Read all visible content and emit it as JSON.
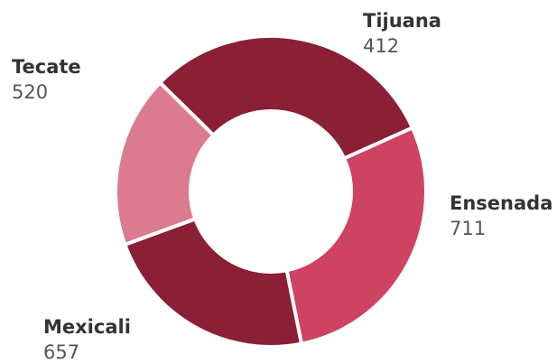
{
  "chart_data": {
    "type": "pie",
    "style": "donut",
    "title": "",
    "slices": [
      {
        "label": "Tijuana",
        "value": 412,
        "color": "#DC7A8F"
      },
      {
        "label": "Ensenada",
        "value": 711,
        "color": "#8A1F36"
      },
      {
        "label": "Mexicali",
        "value": 657,
        "color": "#CE4262"
      },
      {
        "label": "Tecate",
        "value": 520,
        "color": "#8A1F36"
      }
    ],
    "legend": "none"
  }
}
